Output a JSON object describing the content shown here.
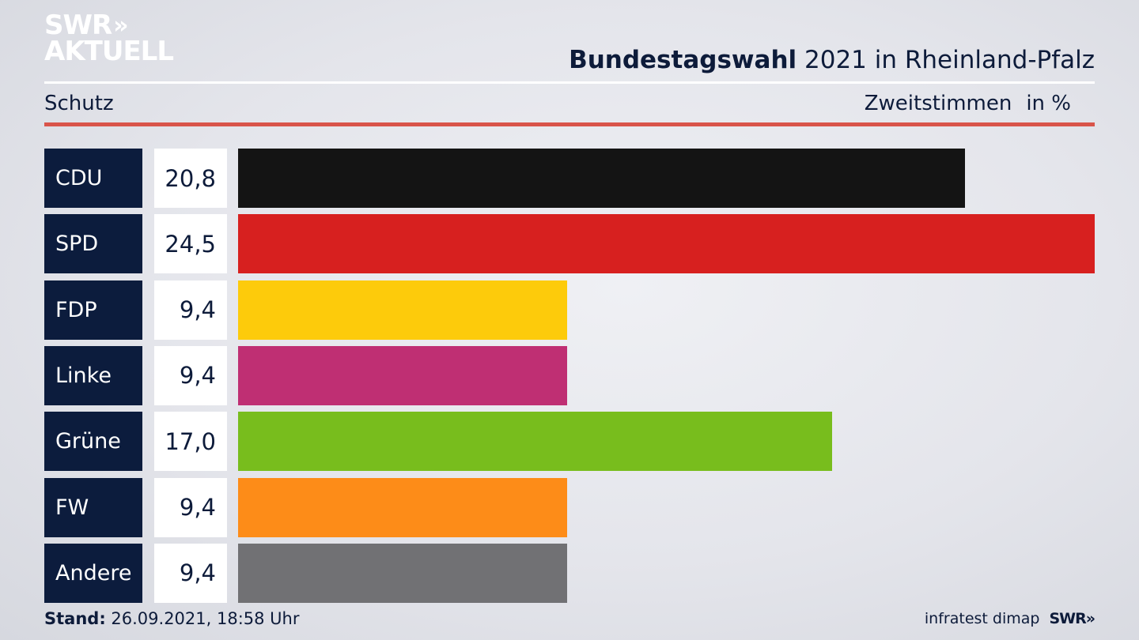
{
  "logo": {
    "line1": "SWR",
    "line1_chevrons": "»",
    "line2": "AKTUELL"
  },
  "header": {
    "title_bold": "Bundestagswahl",
    "title_rest": " 2021 in Rheinland-Pfalz",
    "subtitle": "Schutz",
    "vote_type": "Zweitstimmen",
    "unit": "in %"
  },
  "chart_data": {
    "type": "bar",
    "orientation": "horizontal",
    "categories": [
      "CDU",
      "SPD",
      "FDP",
      "Linke",
      "Grüne",
      "FW",
      "Andere"
    ],
    "value_labels": [
      "20,8",
      "24,5",
      "9,4",
      "9,4",
      "17,0",
      "9,4",
      "9,4"
    ],
    "values": [
      20.8,
      24.5,
      9.4,
      9.4,
      17.0,
      9.4,
      9.4
    ],
    "colors": [
      "#141414",
      "#d7201f",
      "#fdcb0b",
      "#bf2f73",
      "#78bd1d",
      "#fd8c18",
      "#717174"
    ],
    "xlim": [
      0,
      24.5
    ],
    "grid": false,
    "legend": "none"
  },
  "footer": {
    "stand_label": "Stand:",
    "stand_value": " 26.09.2021, 18:58 Uhr",
    "source": "infratest dimap",
    "brand": "SWR»"
  }
}
